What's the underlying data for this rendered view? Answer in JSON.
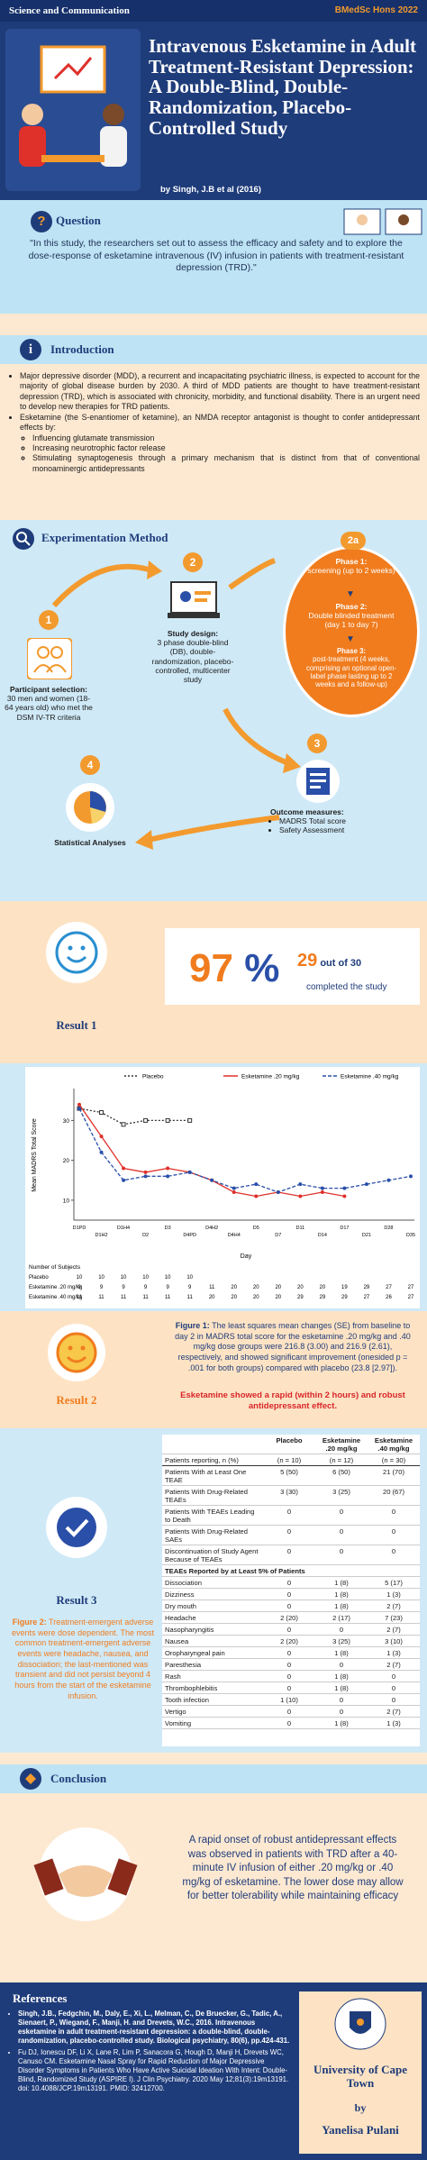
{
  "header": {
    "tag": "Science and Communication",
    "course": "BMedSc Hons 2022",
    "title": "Intravenous Esketamine in Adult Treatment-Resistant Depression: A Double-Blind, Double-Randomization, Placebo-Controlled Study",
    "byline": "by Singh, J.B et al (2016)"
  },
  "question": {
    "heading": "Question",
    "text": "\"In this study, the researchers set out to assess the efficacy and safety and to explore the dose-response of esketamine intravenous (IV) infusion in patients with treatment-resistant depression (TRD).\""
  },
  "introduction": {
    "heading": "Introduction",
    "bullets": [
      "Major depressive disorder (MDD), a recurrent and incapacitating psychiatric illness, is expected to account for the majority of global disease burden by 2030. A third of MDD patients are thought to have treatment-resistant depression (TRD), which is associated with chronicity, morbidity, and functional disability. There is an urgent need to develop new therapies for TRD patients.",
      "Esketamine (the S-enantiomer of ketamine), an NMDA receptor antagonist is thought to confer antidepressant effects by:"
    ],
    "sub_bullets": [
      "Influencing glutamate transmission",
      "Increasing neurotrophic factor release",
      "Stimulating synaptogenesis through a primary mechanism that is distinct from that of conventional monoaminergic antidepressants"
    ]
  },
  "method": {
    "heading": "Experimentation Method",
    "step1": {
      "number": "1",
      "title": "Participant selection:",
      "text": "30 men and women (18-64 years old) who met the DSM IV-TR criteria"
    },
    "step2": {
      "number": "2",
      "title": "Study design:",
      "text": "3 phase double-blind (DB), double-randomization, placebo-controlled, multicenter study"
    },
    "step2a": {
      "number": "2a",
      "phases": [
        {
          "title": "Phase 1:",
          "text": "screening (up to 2 weeks)"
        },
        {
          "title": "Phase 2:",
          "text": "Double blinded treatment (day 1 to day 7)"
        },
        {
          "title": "Phase 3:",
          "text": "post-treatment (4 weeks, comprising an optional open-label phase lasting up to 2 weeks and a follow-up)"
        }
      ]
    },
    "step3": {
      "number": "3",
      "title": "Outcome measures:",
      "items": [
        "MADRS Total score",
        "Safety Assessment"
      ]
    },
    "step4": {
      "number": "4",
      "title": "Statistical Analyses"
    }
  },
  "result1": {
    "label": "Result 1",
    "percent": "97",
    "percent_sign": "%",
    "count": "29",
    "count_text": "out of 30",
    "caption": "completed the study"
  },
  "chart_data": {
    "type": "line",
    "ylabel": "Mean MADRS Total Score",
    "xlabel": "Day",
    "categories": [
      "D1PD",
      "D1H2",
      "D1H4",
      "D2",
      "D3",
      "D4PD",
      "D4H2",
      "D4H4",
      "D5",
      "D7",
      "D11",
      "D14",
      "D17",
      "D21",
      "D28",
      "D35"
    ],
    "series": [
      {
        "name": "Placebo",
        "color": "#333333",
        "values": [
          33,
          32,
          29,
          30,
          30,
          30,
          null,
          null,
          null,
          null,
          null,
          null,
          null,
          null,
          null,
          null
        ]
      },
      {
        "name": "Esketamine .20 mg/kg",
        "color": "#e0302a",
        "values": [
          34,
          26,
          18,
          17,
          18,
          17,
          15,
          12,
          11,
          12,
          11,
          12,
          11,
          null,
          null,
          null
        ]
      },
      {
        "name": "Esketamine .40 mg/kg",
        "color": "#2a4fa8",
        "values": [
          33,
          22,
          15,
          16,
          16,
          17,
          15,
          13,
          14,
          12,
          14,
          13,
          13,
          14,
          15,
          16
        ]
      }
    ],
    "ylim": [
      5,
      38
    ],
    "yticks": [
      10,
      20,
      30
    ],
    "subjects_title": "Number of Subjects",
    "subjects": [
      [
        10,
        10,
        10,
        10,
        10,
        10,
        null,
        null,
        null,
        null,
        null,
        null,
        null,
        null,
        null,
        null
      ],
      [
        9,
        9,
        9,
        9,
        9,
        9,
        11,
        20,
        20,
        20,
        20,
        20,
        19,
        29,
        27,
        27
      ],
      [
        11,
        11,
        11,
        11,
        11,
        11,
        20,
        20,
        20,
        20,
        29,
        29,
        29,
        27,
        26,
        27
      ]
    ]
  },
  "result2": {
    "label": "Result 2",
    "figure_label": "Figure 1:",
    "caption": " The least squares mean changes (SE) from baseline to day 2 in MADRS total score for the esketamine .20 mg/kg and .40 mg/kg dose groups were 216.8 (3.00) and 216.9 (2.61), respectively, and showed significant improvement (onesided p = .001 for both groups) compared with placebo (23.8 [2.97]).",
    "highlight": "Esketamine showed a rapid (within 2 hours) and robust antidepressant effect."
  },
  "result3": {
    "label": "Result 3",
    "figure_label": "Figure 2:",
    "caption": " Treatment-emergent adverse events were dose dependent. The most common treatment-emergent adverse events were headache, nausea, and dissociation; the last-mentioned was transient and did not persist beyond 4 hours from the start of the esketamine infusion.",
    "table": {
      "columns": [
        "Placebo",
        "Esketamine .20 mg/kg",
        "Esketamine .40 mg/kg"
      ],
      "n": [
        "(n = 10)",
        "(n = 12)",
        "(n = 30)"
      ],
      "header_label": "Patients reporting, n (%)",
      "rows_main": [
        {
          "label": "Patients With at Least One TEAE",
          "values": [
            "5 (50)",
            "6 (50)",
            "21 (70)"
          ]
        },
        {
          "label": "Patients With Drug-Related TEAEs",
          "values": [
            "3 (30)",
            "3 (25)",
            "20 (67)"
          ]
        },
        {
          "label": "Patients With TEAEs Leading to Death",
          "values": [
            "0",
            "0",
            "0"
          ]
        },
        {
          "label": "Patients With Drug-Related SAEs",
          "values": [
            "0",
            "0",
            "0"
          ]
        },
        {
          "label": "Discontinuation of Study Agent Because of TEAEs",
          "values": [
            "0",
            "0",
            "0"
          ]
        }
      ],
      "section": "TEAEs Reported by at Least 5% of Patients",
      "rows_teae": [
        {
          "label": "Dissociation",
          "values": [
            "0",
            "1 (8)",
            "5 (17)"
          ]
        },
        {
          "label": "Dizziness",
          "values": [
            "0",
            "1 (8)",
            "1 (3)"
          ]
        },
        {
          "label": "Dry mouth",
          "values": [
            "0",
            "1 (8)",
            "2 (7)"
          ]
        },
        {
          "label": "Headache",
          "values": [
            "2 (20)",
            "2 (17)",
            "7 (23)"
          ]
        },
        {
          "label": "Nasopharyngitis",
          "values": [
            "0",
            "0",
            "2 (7)"
          ]
        },
        {
          "label": "Nausea",
          "values": [
            "2 (20)",
            "3 (25)",
            "3 (10)"
          ]
        },
        {
          "label": "Oropharyngeal pain",
          "values": [
            "0",
            "1 (8)",
            "1 (3)"
          ]
        },
        {
          "label": "Paresthesia",
          "values": [
            "0",
            "0",
            "2 (7)"
          ]
        },
        {
          "label": "Rash",
          "values": [
            "0",
            "1 (8)",
            "0"
          ]
        },
        {
          "label": "Thrombophlebitis",
          "values": [
            "0",
            "1 (8)",
            "0"
          ]
        },
        {
          "label": "Tooth infection",
          "values": [
            "1 (10)",
            "0",
            "0"
          ]
        },
        {
          "label": "Vertigo",
          "values": [
            "0",
            "0",
            "2 (7)"
          ]
        },
        {
          "label": "Vomiting",
          "values": [
            "0",
            "1 (8)",
            "1 (3)"
          ]
        }
      ]
    }
  },
  "conclusion": {
    "heading": "Conclusion",
    "text": "A rapid onset of robust antidepressant effects was observed in patients with TRD after a 40-minute IV infusion of either .20 mg/kg or .40 mg/kg of esketamine. The lower dose may allow for better tolerability while maintaining efficacy"
  },
  "references": {
    "heading": "References",
    "items": [
      "Singh, J.B., Fedgchin, M., Daly, E., Xi, L., Melman, C., De Bruecker, G., Tadic, A., Sienaert, P., Wiegand, F., Manji, H. and Drevets, W.C., 2016. Intravenous esketamine in adult treatment-resistant depression: a double-blind, double-randomization, placebo-controlled study. Biological psychiatry, 80(6), pp.424-431.",
      "Fu DJ, Ionescu DF, Li X, Lane R, Lim P, Sanacora G, Hough D, Manji H, Drevets WC, Canuso CM. Esketamine Nasal Spray for Rapid Reduction of Major Depressive Disorder Symptoms in Patients Who Have Active Suicidal Ideation With Intent: Double-Blind, Randomized Study (ASPIRE I). J Clin Psychiatry. 2020 May 12;81(3):19m13191. doi: 10.4088/JCP.19m13191. PMID: 32412700."
    ]
  },
  "credit": {
    "university": "University of Cape Town",
    "by": "by",
    "author": "Yanelisa Pulani"
  }
}
